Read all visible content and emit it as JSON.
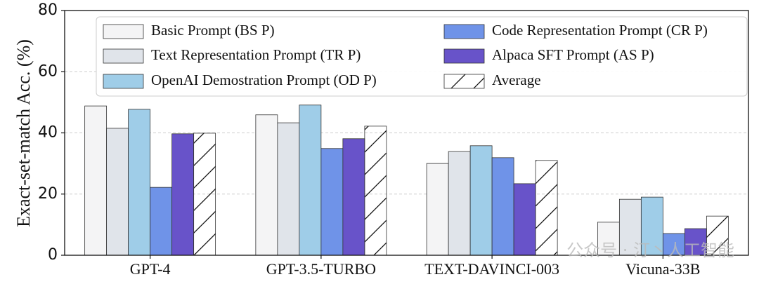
{
  "chart_data": {
    "type": "grouped_bar",
    "ylabel": "Exact-set-match Acc. (%)",
    "categories": [
      "GPT-4",
      "GPT-3.5-TURBO",
      "TEXT-DAVINCI-003",
      "Vicuna-33B"
    ],
    "series": [
      {
        "name": "Basic Prompt (BS P)",
        "color": "#f4f4f5",
        "values": [
          48.8,
          45.9,
          30.0,
          10.8
        ]
      },
      {
        "name": "Text Representation Prompt (TR P)",
        "color": "#e0e4ea",
        "values": [
          41.5,
          43.3,
          33.9,
          18.3
        ]
      },
      {
        "name": "OpenAI Demostration Prompt (OD P)",
        "color": "#9fcde8",
        "values": [
          47.7,
          49.1,
          35.8,
          19.0
        ]
      },
      {
        "name": "Code Representation Prompt (CR P)",
        "color": "#6f93e8",
        "values": [
          22.2,
          34.9,
          31.9,
          7.1
        ]
      },
      {
        "name": "Alpaca SFT Prompt (AS P)",
        "color": "#6853c9",
        "values": [
          39.7,
          38.1,
          23.4,
          8.7
        ]
      },
      {
        "name": "Average",
        "color": "#ffffff",
        "hatch": true,
        "values": [
          39.9,
          42.2,
          31.0,
          12.8
        ]
      }
    ],
    "ylim": [
      0,
      80
    ],
    "yticks": [
      0,
      20,
      40,
      60,
      80
    ],
    "grid": true,
    "watermark": "公众号 · 汀丶人工智能"
  }
}
